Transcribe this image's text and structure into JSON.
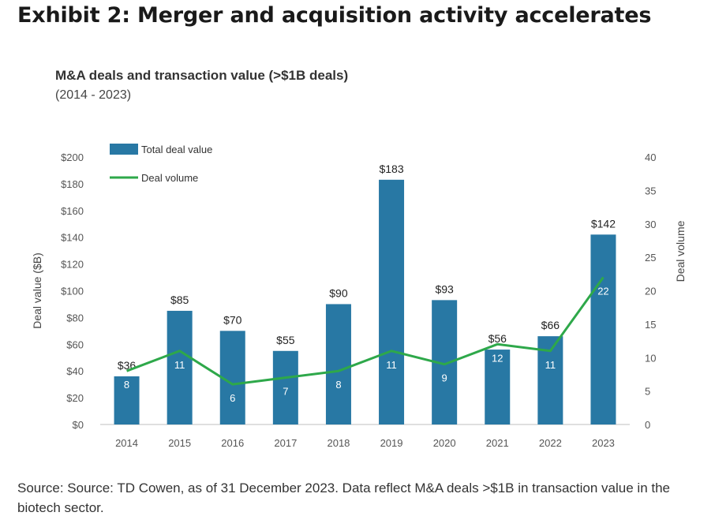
{
  "exhibit_title": "Exhibit 2: Merger and acquisition activity accelerates",
  "source_note": "Source: Source: TD Cowen, as of 31 December 2023. Data reflect M&A deals >$1B in transaction value in the biotech sector.",
  "colors": {
    "bar": "#2878a4",
    "line": "#2ea84a",
    "axis": "#bfbfbf",
    "tick_text": "#555555"
  },
  "chart_data": {
    "type": "bar",
    "title": "M&A deals and transaction value (>$1B deals)",
    "subtitle": "(2014 - 2023)",
    "categories": [
      "2014",
      "2015",
      "2016",
      "2017",
      "2018",
      "2019",
      "2020",
      "2021",
      "2022",
      "2023"
    ],
    "series": [
      {
        "name": "Total deal value",
        "type": "bar",
        "axis": "left",
        "values": [
          36,
          85,
          70,
          55,
          90,
          183,
          93,
          56,
          66,
          142
        ],
        "labels": [
          "$36",
          "$85",
          "$70",
          "$55",
          "$90",
          "$183",
          "$93",
          "$56",
          "$66",
          "$142"
        ]
      },
      {
        "name": "Deal volume",
        "type": "line",
        "axis": "right",
        "values": [
          8,
          11,
          6,
          7,
          8,
          11,
          9,
          12,
          11,
          22
        ],
        "labels": [
          "8",
          "11",
          "6",
          "7",
          "8",
          "11",
          "9",
          "12",
          "11",
          "22"
        ]
      }
    ],
    "ylabel": "Deal value ($B)",
    "ylabel_right": "Deal volume",
    "ylim": [
      0,
      200
    ],
    "ylim_right": [
      0,
      40
    ],
    "yticks": [
      "$0",
      "$20",
      "$40",
      "$60",
      "$80",
      "$100",
      "$120",
      "$140",
      "$160",
      "$180",
      "$200"
    ],
    "yticks_right": [
      "0",
      "5",
      "10",
      "15",
      "20",
      "25",
      "30",
      "35",
      "40"
    ],
    "legend_position": "top-left",
    "grid": false
  }
}
